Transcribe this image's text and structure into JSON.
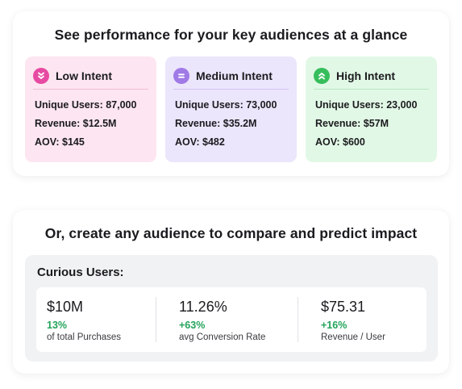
{
  "top_section": {
    "heading": "See performance for your key audiences at a glance",
    "tiers": [
      {
        "title": "Low Intent",
        "icon": "chevrons-down-icon",
        "color": "#e74aa2",
        "stats": [
          "Unique Users: 87,000",
          "Revenue: $12.5M",
          "AOV: $145"
        ]
      },
      {
        "title": "Medium Intent",
        "icon": "equals-icon",
        "color": "#a07ae6",
        "stats": [
          "Unique Users: 73,000",
          "Revenue: $35.2M",
          "AOV: $482"
        ]
      },
      {
        "title": "High Intent",
        "icon": "chevrons-up-icon",
        "color": "#37be5c",
        "stats": [
          "Unique Users: 23,000",
          "Revenue: $57M",
          "AOV: $600"
        ]
      }
    ]
  },
  "bottom_section": {
    "heading": "Or, create any audience to compare and predict impact",
    "audience_title": "Curious Users:",
    "metrics": [
      {
        "value": "$10M",
        "change": "13%",
        "label": "of total Purchases"
      },
      {
        "value": "11.26%",
        "change": "+63%",
        "label": "avg Conversion Rate"
      },
      {
        "value": "$75.31",
        "change": "+16%",
        "label": "Revenue / User"
      }
    ],
    "positive_color": "#22a35a"
  }
}
